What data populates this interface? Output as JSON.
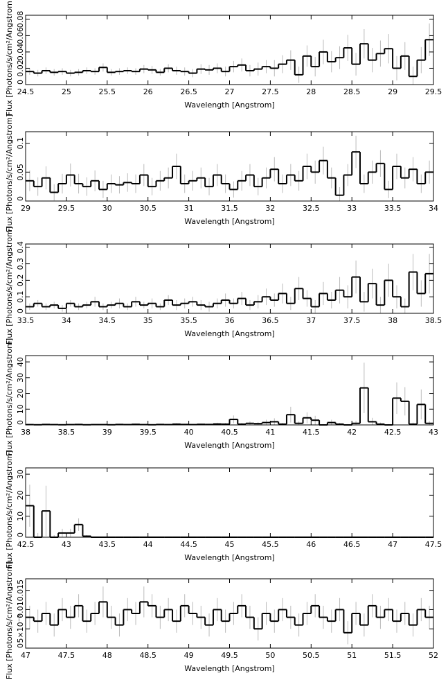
{
  "chart_data": [
    {
      "type": "histogram",
      "x_label": "Wavelength [Angstrom]",
      "y_label": "Flux [Photons/s/cm²/Angstrom]",
      "bins": [
        24.5,
        24.6,
        24.7,
        24.8,
        24.9,
        25.0,
        25.1,
        25.2,
        25.3,
        25.4,
        25.5,
        25.6,
        25.7,
        25.8,
        25.9,
        26.0,
        26.1,
        26.2,
        26.3,
        26.4,
        26.5,
        26.6,
        26.7,
        26.8,
        26.9,
        27.0,
        27.1,
        27.2,
        27.3,
        27.4,
        27.5,
        27.6,
        27.7,
        27.8,
        27.9,
        28.0,
        28.1,
        28.2,
        28.3,
        28.4,
        28.5,
        28.6,
        28.7,
        28.8,
        28.9,
        29.0,
        29.1,
        29.2,
        29.3,
        29.4,
        29.5
      ],
      "values": [
        0.016,
        0.014,
        0.017,
        0.015,
        0.016,
        0.014,
        0.015,
        0.017,
        0.016,
        0.021,
        0.015,
        0.016,
        0.017,
        0.016,
        0.019,
        0.018,
        0.015,
        0.02,
        0.017,
        0.016,
        0.014,
        0.019,
        0.018,
        0.02,
        0.016,
        0.022,
        0.024,
        0.017,
        0.019,
        0.022,
        0.02,
        0.025,
        0.03,
        0.012,
        0.035,
        0.022,
        0.04,
        0.028,
        0.033,
        0.045,
        0.025,
        0.05,
        0.03,
        0.038,
        0.044,
        0.02,
        0.035,
        0.01,
        0.03,
        0.055
      ],
      "errors": [
        0.004,
        0.004,
        0.004,
        0.004,
        0.004,
        0.004,
        0.004,
        0.004,
        0.004,
        0.005,
        0.004,
        0.004,
        0.004,
        0.004,
        0.005,
        0.005,
        0.004,
        0.005,
        0.005,
        0.005,
        0.005,
        0.006,
        0.006,
        0.006,
        0.006,
        0.007,
        0.008,
        0.007,
        0.008,
        0.008,
        0.01,
        0.011,
        0.012,
        0.01,
        0.013,
        0.012,
        0.015,
        0.013,
        0.014,
        0.016,
        0.014,
        0.018,
        0.015,
        0.016,
        0.018,
        0.015,
        0.017,
        0.012,
        0.016,
        0.02
      ],
      "xlim": [
        24.5,
        29.5
      ],
      "xticks": [
        24.5,
        25,
        25.5,
        26,
        26.5,
        27,
        27.5,
        28,
        28.5,
        29,
        29.5
      ],
      "ylim": [
        0,
        0.085
      ],
      "yticks": [
        0,
        0.02,
        0.04,
        0.06,
        0.08
      ]
    },
    {
      "type": "histogram",
      "x_label": "Wavelength [Angstrom]",
      "y_label": "Flux [Photons/s/cm²/Angstrom]",
      "bins": [
        29.0,
        29.1,
        29.2,
        29.3,
        29.4,
        29.5,
        29.6,
        29.7,
        29.8,
        29.9,
        30.0,
        30.1,
        30.2,
        30.3,
        30.4,
        30.5,
        30.6,
        30.7,
        30.8,
        30.9,
        31.0,
        31.1,
        31.2,
        31.3,
        31.4,
        31.5,
        31.6,
        31.7,
        31.8,
        31.9,
        32.0,
        32.1,
        32.2,
        32.3,
        32.4,
        32.5,
        32.6,
        32.7,
        32.8,
        32.9,
        33.0,
        33.1,
        33.2,
        33.3,
        33.4,
        33.5,
        33.6,
        33.7,
        33.8,
        33.9,
        34.0
      ],
      "values": [
        0.035,
        0.025,
        0.04,
        0.015,
        0.03,
        0.045,
        0.03,
        0.025,
        0.035,
        0.02,
        0.03,
        0.028,
        0.032,
        0.03,
        0.045,
        0.025,
        0.035,
        0.04,
        0.06,
        0.03,
        0.035,
        0.04,
        0.025,
        0.045,
        0.03,
        0.02,
        0.035,
        0.045,
        0.025,
        0.04,
        0.055,
        0.03,
        0.045,
        0.035,
        0.06,
        0.05,
        0.07,
        0.04,
        0.01,
        0.045,
        0.085,
        0.03,
        0.05,
        0.065,
        0.02,
        0.06,
        0.04,
        0.055,
        0.03,
        0.05
      ],
      "errors": [
        0.018,
        0.016,
        0.02,
        0.014,
        0.017,
        0.02,
        0.017,
        0.016,
        0.018,
        0.015,
        0.016,
        0.015,
        0.016,
        0.016,
        0.019,
        0.015,
        0.017,
        0.018,
        0.022,
        0.016,
        0.017,
        0.018,
        0.015,
        0.019,
        0.016,
        0.014,
        0.017,
        0.019,
        0.015,
        0.018,
        0.021,
        0.016,
        0.019,
        0.017,
        0.022,
        0.02,
        0.024,
        0.018,
        0.014,
        0.019,
        0.028,
        0.016,
        0.02,
        0.023,
        0.015,
        0.022,
        0.018,
        0.021,
        0.016,
        0.02
      ],
      "xlim": [
        29,
        34
      ],
      "xticks": [
        29,
        29.5,
        30,
        30.5,
        31,
        31.5,
        32,
        32.5,
        33,
        33.5,
        34
      ],
      "ylim": [
        0,
        0.12
      ],
      "yticks": [
        0,
        0.05,
        0.1
      ]
    },
    {
      "type": "histogram",
      "x_label": "Wavelength [Angstrom]",
      "y_label": "Flux [Photons/s/cm²/Angstrom]",
      "bins": [
        33.5,
        33.6,
        33.7,
        33.8,
        33.9,
        34.0,
        34.1,
        34.2,
        34.3,
        34.4,
        34.5,
        34.6,
        34.7,
        34.8,
        34.9,
        35.0,
        35.1,
        35.2,
        35.3,
        35.4,
        35.5,
        35.6,
        35.7,
        35.8,
        35.9,
        36.0,
        36.1,
        36.2,
        36.3,
        36.4,
        36.5,
        36.6,
        36.7,
        36.8,
        36.9,
        37.0,
        37.1,
        37.2,
        37.3,
        37.4,
        37.5,
        37.6,
        37.7,
        37.8,
        37.9,
        38.0,
        38.1,
        38.2,
        38.3,
        38.4,
        38.5
      ],
      "values": [
        0.04,
        0.06,
        0.04,
        0.05,
        0.03,
        0.06,
        0.04,
        0.05,
        0.07,
        0.04,
        0.05,
        0.06,
        0.04,
        0.07,
        0.05,
        0.06,
        0.04,
        0.08,
        0.05,
        0.06,
        0.07,
        0.05,
        0.04,
        0.06,
        0.08,
        0.06,
        0.09,
        0.05,
        0.07,
        0.1,
        0.08,
        0.12,
        0.06,
        0.15,
        0.09,
        0.04,
        0.12,
        0.08,
        0.14,
        0.1,
        0.22,
        0.07,
        0.18,
        0.05,
        0.2,
        0.1,
        0.04,
        0.25,
        0.12,
        0.24
      ],
      "errors": [
        0.02,
        0.02,
        0.02,
        0.02,
        0.02,
        0.02,
        0.02,
        0.02,
        0.03,
        0.02,
        0.02,
        0.03,
        0.02,
        0.03,
        0.02,
        0.03,
        0.02,
        0.03,
        0.03,
        0.03,
        0.03,
        0.03,
        0.03,
        0.03,
        0.04,
        0.03,
        0.04,
        0.03,
        0.04,
        0.05,
        0.04,
        0.06,
        0.04,
        0.07,
        0.05,
        0.04,
        0.07,
        0.05,
        0.08,
        0.07,
        0.1,
        0.06,
        0.09,
        0.05,
        0.1,
        0.07,
        0.05,
        0.11,
        0.08,
        0.12
      ],
      "xlim": [
        33.5,
        38.5
      ],
      "xticks": [
        33.5,
        34,
        34.5,
        35,
        35.5,
        36,
        36.5,
        37,
        37.5,
        38,
        38.5
      ],
      "ylim": [
        0,
        0.42
      ],
      "yticks": [
        0,
        0.1,
        0.2,
        0.3,
        0.4
      ]
    },
    {
      "type": "histogram",
      "x_label": "Wavelength [Angstrom]",
      "y_label": "Flux [Photons/s/cm²/Angstrom]",
      "bins": [
        38.0,
        38.1,
        38.2,
        38.3,
        38.4,
        38.5,
        38.6,
        38.7,
        38.8,
        38.9,
        39.0,
        39.1,
        39.2,
        39.3,
        39.4,
        39.5,
        39.6,
        39.7,
        39.8,
        39.9,
        40.0,
        40.1,
        40.2,
        40.3,
        40.4,
        40.5,
        40.6,
        40.7,
        40.8,
        40.9,
        41.0,
        41.1,
        41.2,
        41.3,
        41.4,
        41.5,
        41.6,
        41.7,
        41.8,
        41.9,
        42.0,
        42.1,
        42.2,
        42.3,
        42.4,
        42.5,
        42.6,
        42.7,
        42.8,
        42.9,
        43.0
      ],
      "values": [
        0.2,
        0.1,
        0.3,
        0.2,
        0.1,
        0.2,
        0.3,
        0.1,
        0.2,
        0.2,
        0.1,
        0.3,
        0.2,
        0.4,
        0.2,
        0.1,
        0.3,
        0.2,
        0.5,
        0.3,
        0.2,
        0.4,
        0.3,
        0.6,
        0.5,
        3.5,
        0.5,
        1.0,
        0.8,
        1.5,
        2.0,
        0.5,
        6.5,
        1.0,
        4.5,
        3.0,
        0.0,
        1.5,
        0.5,
        0.0,
        1.0,
        23.5,
        2.0,
        0.5,
        0.0,
        17.0,
        15.0,
        0.5,
        13.0,
        1.0
      ],
      "errors": [
        0.3,
        0.3,
        0.4,
        0.3,
        0.3,
        0.3,
        0.4,
        0.3,
        0.3,
        0.3,
        0.3,
        0.4,
        0.3,
        0.5,
        0.3,
        0.3,
        0.4,
        0.3,
        0.6,
        0.4,
        0.3,
        0.5,
        0.4,
        0.8,
        0.7,
        2.5,
        0.8,
        1.2,
        1.0,
        1.8,
        2.2,
        0.8,
        5.0,
        1.2,
        3.5,
        2.8,
        0.5,
        1.8,
        0.8,
        0.5,
        1.5,
        16.0,
        2.5,
        1.0,
        0.5,
        10.0,
        9.0,
        1.0,
        9.5,
        1.5
      ],
      "xlim": [
        38,
        43
      ],
      "xticks": [
        38,
        38.5,
        39,
        39.5,
        40,
        40.5,
        41,
        41.5,
        42,
        42.5,
        43
      ],
      "ylim": [
        0,
        44
      ],
      "yticks": [
        0,
        10,
        20,
        30,
        40
      ]
    },
    {
      "type": "histogram",
      "x_label": "Wavelength [Angstrom]",
      "y_label": "Flux [Photons/s/cm²/Angstrom]",
      "bins": [
        42.5,
        42.6,
        42.7,
        42.8,
        42.9,
        43.0,
        43.1,
        43.2,
        43.3,
        43.4,
        43.5,
        43.6,
        43.7,
        43.8,
        43.9,
        44.0,
        44.1,
        44.2,
        44.3,
        44.4,
        44.5,
        44.6,
        44.7,
        44.8,
        44.9,
        45.0,
        45.1,
        45.2,
        45.3,
        45.4,
        45.5,
        45.6,
        45.7,
        45.8,
        45.9,
        46.0,
        46.1,
        46.2,
        46.3,
        46.4,
        46.5,
        46.6,
        46.7,
        46.8,
        46.9,
        47.0,
        47.1,
        47.2,
        47.3,
        47.4,
        47.5
      ],
      "values": [
        15.0,
        0.0,
        12.5,
        0.0,
        2.0,
        2.0,
        6.0,
        0.5,
        0,
        0,
        0,
        0,
        0,
        0,
        0,
        0,
        0,
        0,
        0,
        0,
        0,
        0,
        0,
        0,
        0,
        0,
        0,
        0,
        0,
        0,
        0,
        0,
        0,
        0,
        0,
        0,
        0,
        0,
        0,
        0,
        0,
        0,
        0,
        0,
        0,
        0,
        0,
        0,
        0,
        0
      ],
      "errors": [
        10.0,
        2.0,
        12.0,
        1.0,
        2.0,
        2.0,
        3.0,
        0.5,
        0.1,
        0.1,
        0.1,
        0.1,
        0.1,
        0.1,
        0.1,
        0.1,
        0.1,
        0.1,
        0.1,
        0.1,
        0.1,
        0.1,
        0.1,
        0.1,
        0.1,
        0.1,
        0.1,
        0.1,
        0.1,
        0.1,
        0.1,
        0.1,
        0.1,
        0.1,
        0.1,
        0.1,
        0.1,
        0.1,
        0.1,
        0.1,
        0.1,
        0.1,
        0.1,
        0.1,
        0.1,
        0.1,
        0.1,
        0.1,
        0.1,
        0.1
      ],
      "xlim": [
        42.5,
        47.5
      ],
      "xticks": [
        42.5,
        43,
        43.5,
        44,
        44.5,
        45,
        45.5,
        46,
        46.5,
        47,
        47.5
      ],
      "ylim": [
        0,
        33
      ],
      "yticks": [
        0,
        10,
        20,
        30
      ]
    },
    {
      "type": "histogram",
      "x_label": "Wavelength [Angstrom]",
      "y_label": "Flux [Photons/s/cm²/Angstrom]",
      "bins": [
        47.0,
        47.1,
        47.2,
        47.3,
        47.4,
        47.5,
        47.6,
        47.7,
        47.8,
        47.9,
        48.0,
        48.1,
        48.2,
        48.3,
        48.4,
        48.5,
        48.6,
        48.7,
        48.8,
        48.9,
        49.0,
        49.1,
        49.2,
        49.3,
        49.4,
        49.5,
        49.6,
        49.7,
        49.8,
        49.9,
        50.0,
        50.1,
        50.2,
        50.3,
        50.4,
        50.5,
        50.6,
        50.7,
        50.8,
        50.9,
        51.0,
        51.1,
        51.2,
        51.3,
        51.4,
        51.5,
        51.6,
        51.7,
        51.8,
        51.9,
        52.0
      ],
      "values": [
        0.008,
        0.007,
        0.009,
        0.006,
        0.01,
        0.008,
        0.011,
        0.007,
        0.009,
        0.012,
        0.008,
        0.006,
        0.01,
        0.009,
        0.012,
        0.011,
        0.008,
        0.01,
        0.007,
        0.011,
        0.009,
        0.008,
        0.006,
        0.01,
        0.007,
        0.009,
        0.011,
        0.008,
        0.005,
        0.009,
        0.007,
        0.01,
        0.008,
        0.006,
        0.009,
        0.011,
        0.008,
        0.007,
        0.01,
        0.004,
        0.009,
        0.006,
        0.011,
        0.008,
        0.01,
        0.007,
        0.009,
        0.006,
        0.01,
        0.008
      ],
      "errors": [
        0.003,
        0.003,
        0.003,
        0.003,
        0.003,
        0.003,
        0.003,
        0.003,
        0.003,
        0.004,
        0.003,
        0.003,
        0.003,
        0.003,
        0.004,
        0.003,
        0.003,
        0.003,
        0.003,
        0.003,
        0.003,
        0.003,
        0.003,
        0.003,
        0.003,
        0.003,
        0.003,
        0.003,
        0.003,
        0.003,
        0.003,
        0.003,
        0.003,
        0.003,
        0.003,
        0.003,
        0.003,
        0.003,
        0.003,
        0.003,
        0.003,
        0.003,
        0.003,
        0.003,
        0.003,
        0.003,
        0.003,
        0.003,
        0.003,
        0.003
      ],
      "xlim": [
        47,
        52
      ],
      "xticks": [
        47,
        47.5,
        48,
        48.5,
        49,
        49.5,
        50,
        50.5,
        51,
        51.5,
        52
      ],
      "ylim": [
        0,
        0.018
      ],
      "yticks": [
        0,
        {
          "value": 0.005,
          "label": "5×10⁻³"
        },
        0.01,
        0.015
      ]
    }
  ]
}
